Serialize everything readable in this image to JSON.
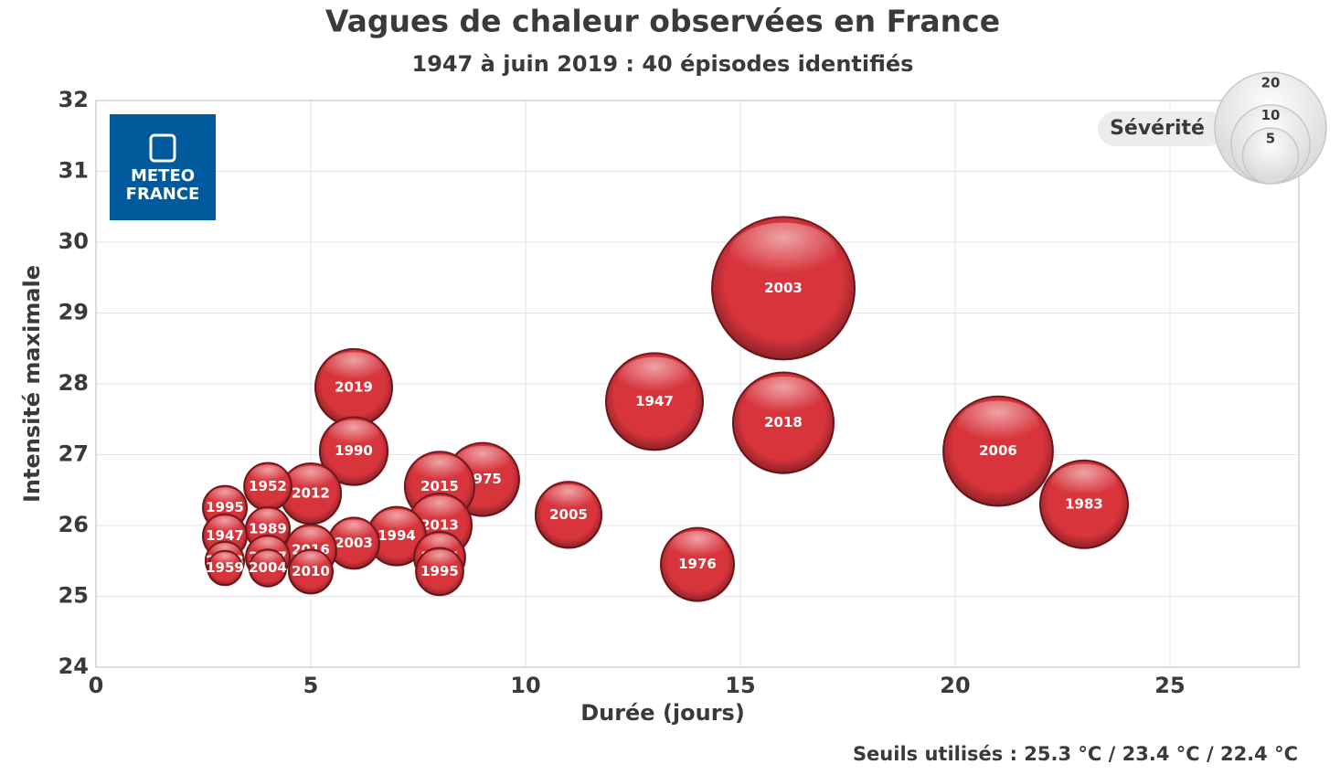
{
  "chart_data": {
    "type": "bubble",
    "title": "Vagues de chaleur observées en France",
    "subtitle": "1947 à juin 2019 : 40 épisodes identifiés",
    "x_label": "Durée (jours)",
    "y_label": "Intensité maximale",
    "footnote": "Seuils utilisés : 25.3 °C / 23.4 °C / 22.4 °C",
    "logo": [
      "METEO",
      "FRANCE"
    ],
    "color": "#d8343c",
    "xlim": [
      0,
      28
    ],
    "xticks": [
      0,
      5,
      10,
      15,
      20,
      25
    ],
    "ylim": [
      24,
      32
    ],
    "yticks": [
      24,
      25,
      26,
      27,
      28,
      29,
      30,
      31,
      32
    ],
    "grid": true,
    "size_legend": {
      "title": "Sévérité",
      "values": [
        20,
        10,
        5
      ]
    },
    "labels": [
      "2003",
      "2006",
      "2018",
      "1947",
      "1983",
      "2019",
      "1976",
      "1975",
      "2015",
      "1990",
      "2005",
      "2013",
      "2012",
      "1994",
      "2003",
      "2016",
      "1994",
      "1995",
      "1952",
      "2010",
      "1989",
      "2017",
      "1995",
      "1947",
      "2013",
      "2004",
      "1959"
    ],
    "x": [
      16,
      21,
      16,
      13,
      23,
      6,
      14,
      9,
      8,
      6,
      11,
      8,
      5,
      7,
      6,
      5,
      8,
      8,
      4,
      5,
      4,
      4,
      3,
      3,
      3,
      4,
      3
    ],
    "values": [
      29.35,
      27.05,
      27.45,
      27.75,
      26.3,
      27.95,
      25.45,
      26.65,
      26.55,
      27.05,
      26.15,
      26.0,
      26.45,
      25.85,
      25.75,
      25.65,
      25.55,
      25.35,
      26.55,
      25.35,
      25.95,
      25.55,
      26.25,
      25.85,
      25.5,
      25.4,
      25.4
    ],
    "sizes": [
      32.7,
      19.3,
      16.3,
      15.1,
      12.4,
      9.5,
      8.6,
      8.6,
      7.8,
      7.4,
      7.0,
      6.6,
      5.9,
      5.5,
      4.2,
      4.2,
      4.2,
      3.6,
      3.6,
      3.1,
      3.1,
      3.1,
      3.1,
      3.1,
      2.4,
      2.2,
      1.9
    ]
  }
}
